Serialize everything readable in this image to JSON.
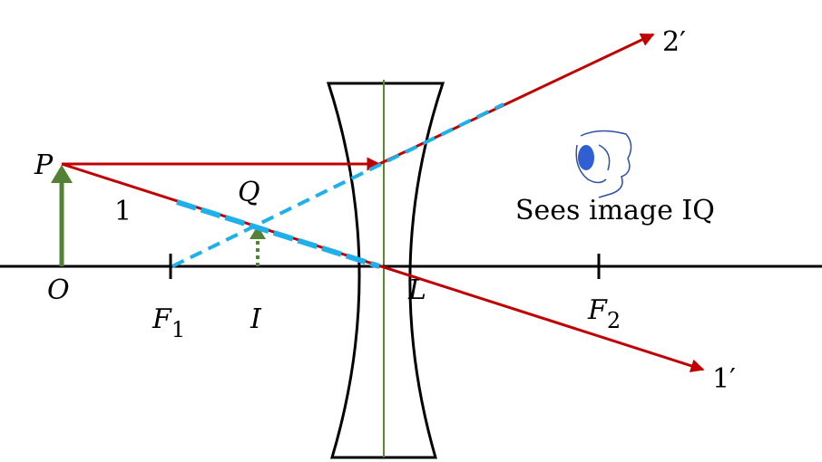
{
  "labels": {
    "object_tip": "P",
    "image_tip": "Q",
    "ray_1": "1",
    "object_base": "O",
    "focus_1": {
      "letter": "F",
      "subscript": "1"
    },
    "image_base": "I",
    "lens": "L",
    "focus_2": {
      "letter": "F",
      "subscript": "2"
    },
    "ray_2_out": "2′",
    "ray_1_out": "1′",
    "observer_note": "Sees image IQ"
  }
}
